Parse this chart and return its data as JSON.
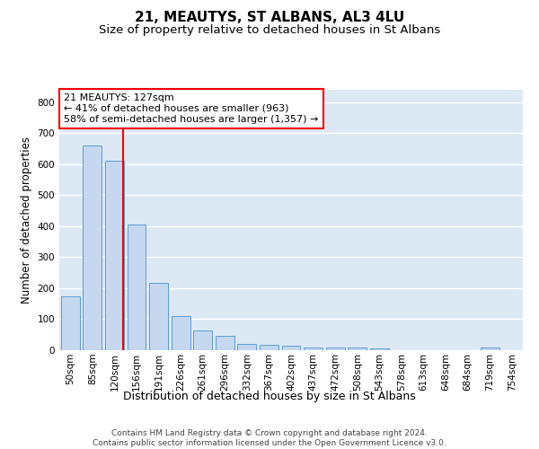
{
  "title": "21, MEAUTYS, ST ALBANS, AL3 4LU",
  "subtitle": "Size of property relative to detached houses in St Albans",
  "xlabel": "Distribution of detached houses by size in St Albans",
  "ylabel": "Number of detached properties",
  "categories": [
    "50sqm",
    "85sqm",
    "120sqm",
    "156sqm",
    "191sqm",
    "226sqm",
    "261sqm",
    "296sqm",
    "332sqm",
    "367sqm",
    "402sqm",
    "437sqm",
    "472sqm",
    "508sqm",
    "543sqm",
    "578sqm",
    "613sqm",
    "648sqm",
    "684sqm",
    "719sqm",
    "754sqm"
  ],
  "values": [
    175,
    660,
    610,
    405,
    218,
    110,
    63,
    46,
    20,
    17,
    15,
    8,
    8,
    8,
    5,
    0,
    0,
    0,
    0,
    8,
    0
  ],
  "bar_color": "#c5d8f0",
  "bar_edge_color": "#5b9bd5",
  "annotation_text": "21 MEAUTYS: 127sqm\n← 41% of detached houses are smaller (963)\n58% of semi-detached houses are larger (1,357) →",
  "annotation_box_color": "white",
  "annotation_box_edge_color": "red",
  "vline_color": "red",
  "vline_x_index": 2.4,
  "ylim": [
    0,
    840
  ],
  "yticks": [
    0,
    100,
    200,
    300,
    400,
    500,
    600,
    700,
    800
  ],
  "background_color": "#dce9f5",
  "grid_color": "white",
  "footer": "Contains HM Land Registry data © Crown copyright and database right 2024.\nContains public sector information licensed under the Open Government Licence v3.0.",
  "title_fontsize": 11,
  "subtitle_fontsize": 9.5,
  "xlabel_fontsize": 9,
  "ylabel_fontsize": 8.5,
  "tick_fontsize": 7.5,
  "annotation_fontsize": 8,
  "footer_fontsize": 6.5
}
